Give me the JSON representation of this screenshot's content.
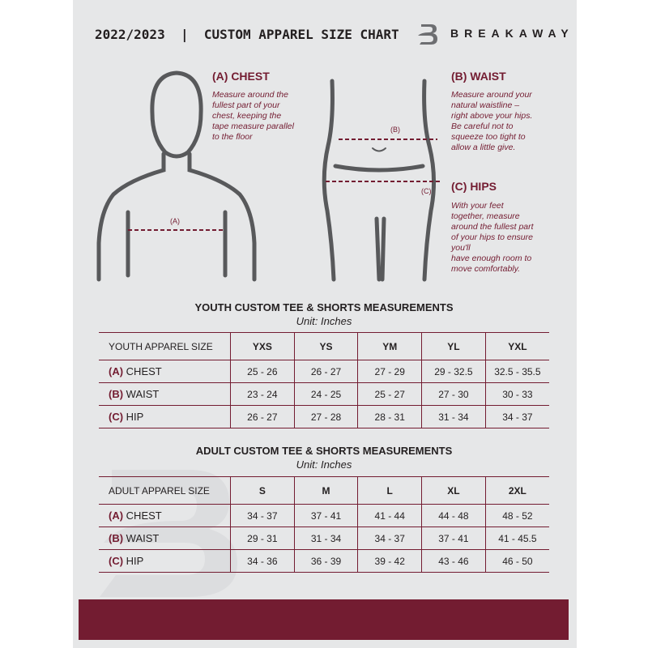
{
  "header": {
    "title": "2022/2023  |  CUSTOM APPAREL SIZE CHART",
    "brand": "BREAKAWAY",
    "logo_letter": "B"
  },
  "colors": {
    "accent": "#731c31",
    "background": "#e6e7e8",
    "text": "#231f20"
  },
  "sections": {
    "chest": {
      "heading": "(A) CHEST",
      "text": "Measure around the\nfullest part of your\nchest, keeping the\ntape measure parallel\nto the floor",
      "marker": "(A)"
    },
    "waist": {
      "heading": "(B) WAIST",
      "text": "Measure around your\nnatural waistline –\nright above your hips.\nBe careful not to\nsqueeze too tight to\nallow a little give.",
      "marker": "(B)"
    },
    "hips": {
      "heading": "(C) HIPS",
      "text": "With your feet\ntogether, measure\naround the fullest part\nof your hips to ensure\nyou'll\nhave enough room to\nmove comfortably.",
      "marker": "(C)"
    }
  },
  "youth": {
    "title": "YOUTH CUSTOM TEE & SHORTS MEASUREMENTS",
    "unit": "Unit: Inches",
    "size_label": "YOUTH APPAREL SIZE",
    "sizes": [
      "YXS",
      "YS",
      "YM",
      "YL",
      "YXL"
    ],
    "rows": [
      {
        "code": "(A)",
        "name": "CHEST",
        "values": [
          "25 - 26",
          "26 - 27",
          "27 - 29",
          "29 - 32.5",
          "32.5 - 35.5"
        ]
      },
      {
        "code": "(B)",
        "name": "WAIST",
        "values": [
          "23 - 24",
          "24 - 25",
          "25 - 27",
          "27 - 30",
          "30 - 33"
        ]
      },
      {
        "code": "(C)",
        "name": "HIP",
        "values": [
          "26 - 27",
          "27 - 28",
          "28 - 31",
          "31 - 34",
          "34 - 37"
        ]
      }
    ]
  },
  "adult": {
    "title": "ADULT CUSTOM TEE & SHORTS MEASUREMENTS",
    "unit": "Unit: Inches",
    "size_label": "ADULT APPAREL SIZE",
    "sizes": [
      "S",
      "M",
      "L",
      "XL",
      "2XL"
    ],
    "rows": [
      {
        "code": "(A)",
        "name": "CHEST",
        "values": [
          "34 - 37",
          "37 - 41",
          "41 - 44",
          "44 - 48",
          "48 - 52"
        ]
      },
      {
        "code": "(B)",
        "name": "WAIST",
        "values": [
          "29 - 31",
          "31 - 34",
          "34 - 37",
          "37 - 41",
          "41 - 45.5"
        ]
      },
      {
        "code": "(C)",
        "name": "HIP",
        "values": [
          "34 - 36",
          "36 - 39",
          "39 - 42",
          "43 - 46",
          "46 - 50"
        ]
      }
    ]
  }
}
